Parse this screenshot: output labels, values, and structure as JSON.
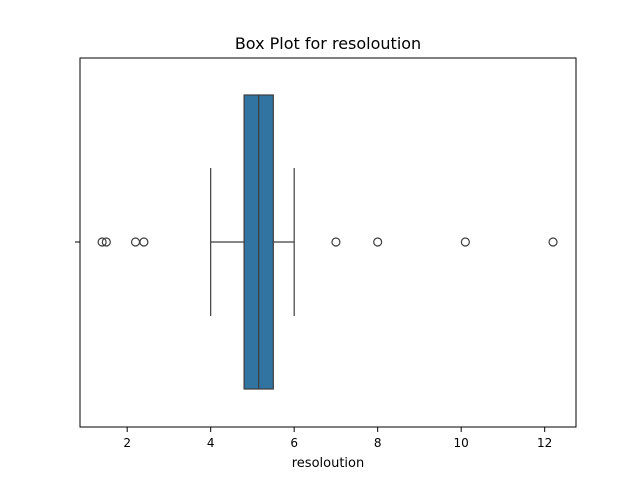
{
  "chart_data": {
    "type": "box",
    "title": "Box Plot for resoloution",
    "xlabel": "resoloution",
    "ylabel": "",
    "orientation": "horizontal",
    "xlim": [
      0.87,
      12.75
    ],
    "xticks": [
      2,
      4,
      6,
      8,
      10,
      12
    ],
    "box": {
      "whisker_low": 4.0,
      "q1": 4.8,
      "median": 5.15,
      "q3": 5.5,
      "whisker_high": 6.0
    },
    "outliers": [
      1.4,
      1.5,
      2.2,
      2.4,
      7.0,
      8.0,
      10.1,
      12.2
    ],
    "grid": false,
    "legend": "none"
  },
  "colors": {
    "box_fill": "#3274a1",
    "line": "#3d3d3d",
    "axis": "#000000"
  }
}
